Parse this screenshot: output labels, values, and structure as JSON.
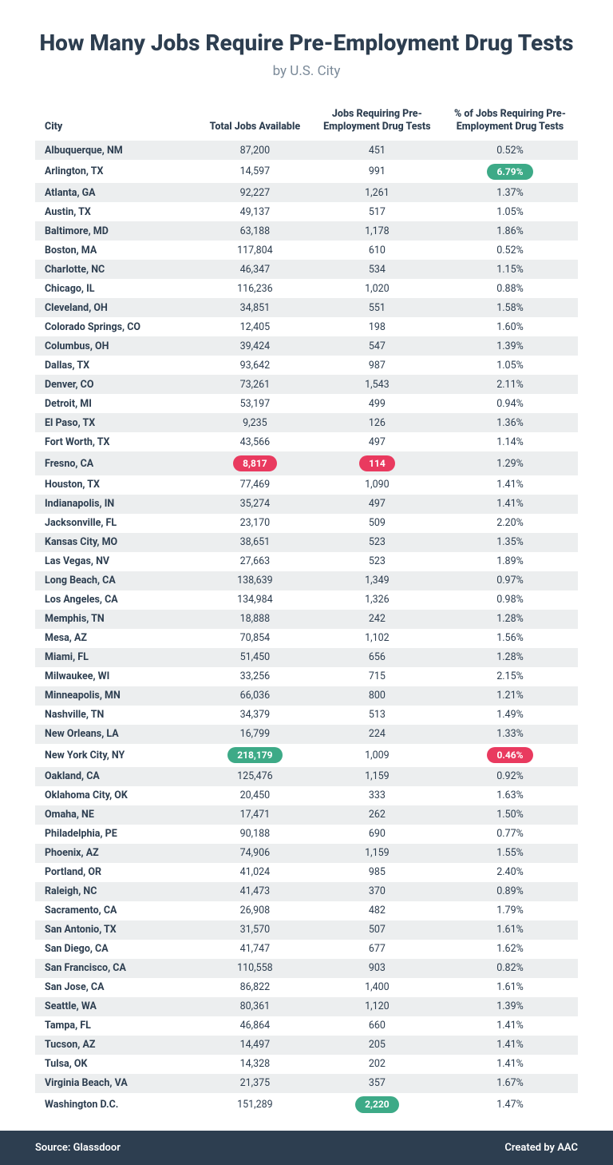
{
  "title": "How Many Jobs Require Pre-Employment Drug Tests",
  "subtitle": "by U.S. City",
  "colors": {
    "green_pill": "#3daa87",
    "red_pill": "#e93a5f",
    "footer_bg": "#2d3e50"
  },
  "columns": [
    "City",
    "Total Jobs Available",
    "Jobs Requiring Pre-Employment Drug Tests",
    "% of Jobs Requiring Pre-Employment Drug Tests"
  ],
  "rows": [
    {
      "city": "Albuquerque, NM",
      "total": "87,200",
      "req": "451",
      "pct": "0.52%"
    },
    {
      "city": "Arlington, TX",
      "total": "14,597",
      "req": "991",
      "pct": "6.79%",
      "pct_pill": "green"
    },
    {
      "city": "Atlanta, GA",
      "total": "92,227",
      "req": "1,261",
      "pct": "1.37%"
    },
    {
      "city": "Austin, TX",
      "total": "49,137",
      "req": "517",
      "pct": "1.05%"
    },
    {
      "city": "Baltimore, MD",
      "total": "63,188",
      "req": "1,178",
      "pct": "1.86%"
    },
    {
      "city": "Boston, MA",
      "total": "117,804",
      "req": "610",
      "pct": "0.52%"
    },
    {
      "city": "Charlotte, NC",
      "total": "46,347",
      "req": "534",
      "pct": "1.15%"
    },
    {
      "city": "Chicago, IL",
      "total": "116,236",
      "req": "1,020",
      "pct": "0.88%"
    },
    {
      "city": "Cleveland, OH",
      "total": "34,851",
      "req": "551",
      "pct": "1.58%"
    },
    {
      "city": "Colorado Springs, CO",
      "total": "12,405",
      "req": "198",
      "pct": "1.60%"
    },
    {
      "city": "Columbus, OH",
      "total": "39,424",
      "req": "547",
      "pct": "1.39%"
    },
    {
      "city": "Dallas, TX",
      "total": "93,642",
      "req": "987",
      "pct": "1.05%"
    },
    {
      "city": "Denver, CO",
      "total": "73,261",
      "req": "1,543",
      "pct": "2.11%"
    },
    {
      "city": "Detroit, MI",
      "total": "53,197",
      "req": "499",
      "pct": "0.94%"
    },
    {
      "city": "El Paso, TX",
      "total": "9,235",
      "req": "126",
      "pct": "1.36%"
    },
    {
      "city": "Fort Worth, TX",
      "total": "43,566",
      "req": "497",
      "pct": "1.14%"
    },
    {
      "city": "Fresno, CA",
      "total": "8,817",
      "req": "114",
      "pct": "1.29%",
      "total_pill": "red",
      "req_pill": "red"
    },
    {
      "city": "Houston, TX",
      "total": "77,469",
      "req": "1,090",
      "pct": "1.41%"
    },
    {
      "city": "Indianapolis, IN",
      "total": "35,274",
      "req": "497",
      "pct": "1.41%"
    },
    {
      "city": "Jacksonville, FL",
      "total": "23,170",
      "req": "509",
      "pct": "2.20%"
    },
    {
      "city": "Kansas City, MO",
      "total": "38,651",
      "req": "523",
      "pct": "1.35%"
    },
    {
      "city": "Las Vegas, NV",
      "total": "27,663",
      "req": "523",
      "pct": "1.89%"
    },
    {
      "city": "Long Beach, CA",
      "total": "138,639",
      "req": "1,349",
      "pct": "0.97%"
    },
    {
      "city": "Los Angeles, CA",
      "total": "134,984",
      "req": "1,326",
      "pct": "0.98%"
    },
    {
      "city": "Memphis, TN",
      "total": "18,888",
      "req": "242",
      "pct": "1.28%"
    },
    {
      "city": "Mesa, AZ",
      "total": "70,854",
      "req": "1,102",
      "pct": "1.56%"
    },
    {
      "city": "Miami, FL",
      "total": "51,450",
      "req": "656",
      "pct": "1.28%"
    },
    {
      "city": "Milwaukee, WI",
      "total": "33,256",
      "req": "715",
      "pct": "2.15%"
    },
    {
      "city": "Minneapolis, MN",
      "total": "66,036",
      "req": "800",
      "pct": "1.21%"
    },
    {
      "city": "Nashville, TN",
      "total": "34,379",
      "req": "513",
      "pct": "1.49%"
    },
    {
      "city": "New Orleans, LA",
      "total": "16,799",
      "req": "224",
      "pct": "1.33%"
    },
    {
      "city": "New York City, NY",
      "total": "218,179",
      "req": "1,009",
      "pct": "0.46%",
      "total_pill": "green",
      "pct_pill": "red"
    },
    {
      "city": "Oakland, CA",
      "total": "125,476",
      "req": "1,159",
      "pct": "0.92%"
    },
    {
      "city": "Oklahoma City, OK",
      "total": "20,450",
      "req": "333",
      "pct": "1.63%"
    },
    {
      "city": "Omaha, NE",
      "total": "17,471",
      "req": "262",
      "pct": "1.50%"
    },
    {
      "city": "Philadelphia, PE",
      "total": "90,188",
      "req": "690",
      "pct": "0.77%"
    },
    {
      "city": "Phoenix, AZ",
      "total": "74,906",
      "req": "1,159",
      "pct": "1.55%"
    },
    {
      "city": "Portland, OR",
      "total": "41,024",
      "req": "985",
      "pct": "2.40%"
    },
    {
      "city": "Raleigh, NC",
      "total": "41,473",
      "req": "370",
      "pct": "0.89%"
    },
    {
      "city": "Sacramento, CA",
      "total": "26,908",
      "req": "482",
      "pct": "1.79%"
    },
    {
      "city": "San Antonio, TX",
      "total": "31,570",
      "req": "507",
      "pct": "1.61%"
    },
    {
      "city": "San Diego, CA",
      "total": "41,747",
      "req": "677",
      "pct": "1.62%"
    },
    {
      "city": "San Francisco, CA",
      "total": "110,558",
      "req": "903",
      "pct": "0.82%"
    },
    {
      "city": "San Jose, CA",
      "total": "86,822",
      "req": "1,400",
      "pct": "1.61%"
    },
    {
      "city": "Seattle, WA",
      "total": "80,361",
      "req": "1,120",
      "pct": "1.39%"
    },
    {
      "city": "Tampa, FL",
      "total": "46,864",
      "req": "660",
      "pct": "1.41%"
    },
    {
      "city": "Tucson, AZ",
      "total": "14,497",
      "req": "205",
      "pct": "1.41%"
    },
    {
      "city": "Tulsa, OK",
      "total": "14,328",
      "req": "202",
      "pct": "1.41%"
    },
    {
      "city": "Virginia Beach, VA",
      "total": "21,375",
      "req": "357",
      "pct": "1.67%"
    },
    {
      "city": "Washington D.C.",
      "total": "151,289",
      "req": "2,220",
      "pct": "1.47%",
      "req_pill": "green"
    }
  ],
  "footer": {
    "source_label": "Source: Glassdoor",
    "credit_label": "Created by AAC"
  }
}
